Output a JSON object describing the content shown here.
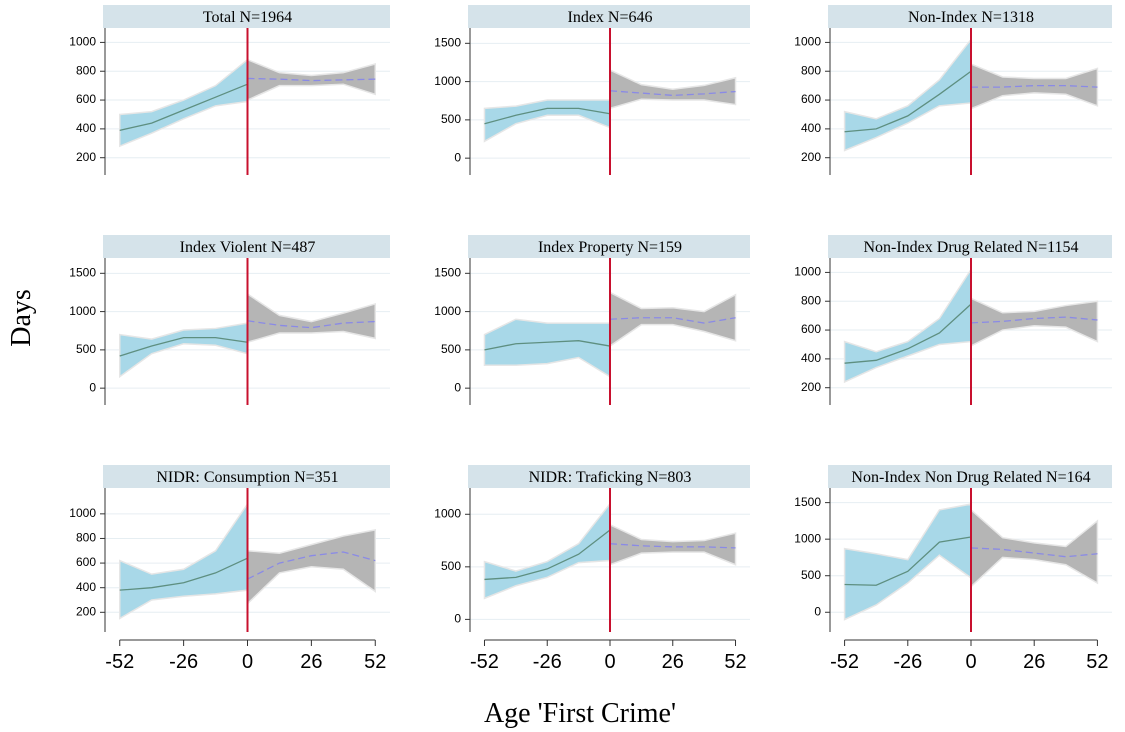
{
  "ylabel": "Days",
  "xlabel": "Age 'First Crime'",
  "chart_data": [
    {
      "type": "line",
      "title": "Total N=1964",
      "xlim": [
        -58,
        58
      ],
      "ylim": [
        80,
        1100
      ],
      "yticks": [
        200,
        400,
        600,
        800,
        1000
      ],
      "grid": true,
      "vline": {
        "value": 0,
        "color": "#c8102e"
      },
      "series": [
        {
          "x": [
            -52,
            -39,
            -26,
            -13,
            0
          ],
          "values": [
            390,
            440,
            530,
            620,
            710
          ],
          "lower": [
            280,
            370,
            470,
            560,
            590
          ],
          "upper": [
            500,
            520,
            600,
            700,
            880
          ],
          "color": "#5e8f80",
          "band_color": "#a8d8e8",
          "dash": false
        },
        {
          "x": [
            0,
            13,
            26,
            39,
            52
          ],
          "values": [
            750,
            745,
            735,
            740,
            745
          ],
          "lower": [
            600,
            700,
            700,
            710,
            640
          ],
          "upper": [
            880,
            790,
            770,
            790,
            850
          ],
          "color": "#8a8ae6",
          "band_color": "#b5b5b5",
          "dash": true
        }
      ]
    },
    {
      "type": "line",
      "title": "Index N=646",
      "xlim": [
        -58,
        58
      ],
      "ylim": [
        -220,
        1700
      ],
      "yticks": [
        0,
        500,
        1000,
        1500
      ],
      "grid": true,
      "vline": {
        "value": 0,
        "color": "#c8102e"
      },
      "series": [
        {
          "x": [
            -52,
            -39,
            -26,
            -13,
            0
          ],
          "values": [
            450,
            560,
            650,
            650,
            580
          ],
          "lower": [
            220,
            450,
            560,
            560,
            400
          ],
          "upper": [
            650,
            680,
            760,
            760,
            760
          ],
          "color": "#5e8f80",
          "band_color": "#a8d8e8",
          "dash": false
        },
        {
          "x": [
            0,
            13,
            26,
            39,
            52
          ],
          "values": [
            880,
            850,
            820,
            840,
            870
          ],
          "lower": [
            650,
            770,
            760,
            760,
            700
          ],
          "upper": [
            1150,
            960,
            900,
            950,
            1050
          ],
          "color": "#8a8ae6",
          "band_color": "#b5b5b5",
          "dash": true
        }
      ]
    },
    {
      "type": "line",
      "title": "Non-Index N=1318",
      "xlim": [
        -58,
        58
      ],
      "ylim": [
        80,
        1100
      ],
      "yticks": [
        200,
        400,
        600,
        800,
        1000
      ],
      "grid": true,
      "vline": {
        "value": 0,
        "color": "#c8102e"
      },
      "series": [
        {
          "x": [
            -52,
            -39,
            -26,
            -13,
            0
          ],
          "values": [
            380,
            400,
            490,
            640,
            800
          ],
          "lower": [
            250,
            340,
            440,
            560,
            580
          ],
          "upper": [
            520,
            470,
            560,
            740,
            1020
          ],
          "color": "#5e8f80",
          "band_color": "#a8d8e8",
          "dash": false
        },
        {
          "x": [
            0,
            13,
            26,
            39,
            52
          ],
          "values": [
            690,
            690,
            700,
            700,
            690
          ],
          "lower": [
            540,
            630,
            650,
            640,
            560
          ],
          "upper": [
            850,
            760,
            750,
            750,
            820
          ],
          "color": "#8a8ae6",
          "band_color": "#b5b5b5",
          "dash": true
        }
      ]
    },
    {
      "type": "line",
      "title": "Index Violent N=487",
      "xlim": [
        -58,
        58
      ],
      "ylim": [
        -220,
        1700
      ],
      "yticks": [
        0,
        500,
        1000,
        1500
      ],
      "grid": true,
      "vline": {
        "value": 0,
        "color": "#c8102e"
      },
      "series": [
        {
          "x": [
            -52,
            -39,
            -26,
            -13,
            0
          ],
          "values": [
            420,
            550,
            660,
            660,
            600
          ],
          "lower": [
            150,
            450,
            580,
            560,
            450
          ],
          "upper": [
            700,
            640,
            760,
            780,
            850
          ],
          "color": "#5e8f80",
          "band_color": "#a8d8e8",
          "dash": false
        },
        {
          "x": [
            0,
            13,
            26,
            39,
            52
          ],
          "values": [
            880,
            820,
            790,
            850,
            870
          ],
          "lower": [
            600,
            720,
            720,
            740,
            650
          ],
          "upper": [
            1230,
            950,
            870,
            980,
            1100
          ],
          "color": "#8a8ae6",
          "band_color": "#b5b5b5",
          "dash": true
        }
      ]
    },
    {
      "type": "line",
      "title": "Index Property N=159",
      "xlim": [
        -58,
        58
      ],
      "ylim": [
        -220,
        1700
      ],
      "yticks": [
        0,
        500,
        1000,
        1500
      ],
      "grid": true,
      "vline": {
        "value": 0,
        "color": "#c8102e"
      },
      "series": [
        {
          "x": [
            -52,
            -39,
            -26,
            -13,
            0
          ],
          "values": [
            500,
            580,
            600,
            620,
            550
          ],
          "lower": [
            300,
            300,
            320,
            400,
            150
          ],
          "upper": [
            700,
            900,
            850,
            850,
            850
          ],
          "color": "#5e8f80",
          "band_color": "#a8d8e8",
          "dash": false
        },
        {
          "x": [
            0,
            13,
            26,
            39,
            52
          ],
          "values": [
            900,
            920,
            920,
            850,
            920
          ],
          "lower": [
            550,
            830,
            830,
            740,
            620
          ],
          "upper": [
            1250,
            1040,
            1050,
            1000,
            1220
          ],
          "color": "#8a8ae6",
          "band_color": "#b5b5b5",
          "dash": true
        }
      ]
    },
    {
      "type": "line",
      "title": "Non-Index Drug Related N=1154",
      "xlim": [
        -58,
        58
      ],
      "ylim": [
        80,
        1100
      ],
      "yticks": [
        200,
        400,
        600,
        800,
        1000
      ],
      "grid": true,
      "vline": {
        "value": 0,
        "color": "#c8102e"
      },
      "series": [
        {
          "x": [
            -52,
            -39,
            -26,
            -13,
            0
          ],
          "values": [
            370,
            390,
            470,
            580,
            780
          ],
          "lower": [
            240,
            340,
            420,
            500,
            520
          ],
          "upper": [
            520,
            450,
            520,
            680,
            1020
          ],
          "color": "#5e8f80",
          "band_color": "#a8d8e8",
          "dash": false
        },
        {
          "x": [
            0,
            13,
            26,
            39,
            52
          ],
          "values": [
            650,
            660,
            680,
            690,
            670
          ],
          "lower": [
            490,
            600,
            630,
            620,
            520
          ],
          "upper": [
            820,
            720,
            730,
            770,
            800
          ],
          "color": "#8a8ae6",
          "band_color": "#b5b5b5",
          "dash": true
        }
      ]
    },
    {
      "type": "line",
      "title": "NIDR: Consumption N=351",
      "xlim": [
        -58,
        58
      ],
      "ylim": [
        40,
        1210
      ],
      "yticks": [
        200,
        400,
        600,
        800,
        1000
      ],
      "xticks": [
        -52,
        -26,
        0,
        26,
        52
      ],
      "grid": true,
      "vline": {
        "value": 0,
        "color": "#c8102e"
      },
      "series": [
        {
          "x": [
            -52,
            -39,
            -26,
            -13,
            0
          ],
          "values": [
            380,
            400,
            440,
            520,
            640
          ],
          "lower": [
            150,
            300,
            330,
            350,
            380
          ],
          "upper": [
            620,
            510,
            550,
            700,
            1080
          ],
          "color": "#5e8f80",
          "band_color": "#a8d8e8",
          "dash": false
        },
        {
          "x": [
            0,
            13,
            26,
            39,
            52
          ],
          "values": [
            470,
            600,
            660,
            690,
            620
          ],
          "lower": [
            270,
            520,
            570,
            550,
            370
          ],
          "upper": [
            700,
            680,
            750,
            820,
            870
          ],
          "color": "#8a8ae6",
          "band_color": "#b5b5b5",
          "dash": true
        }
      ]
    },
    {
      "type": "line",
      "title": "NIDR: Traficking N=803",
      "xlim": [
        -58,
        58
      ],
      "ylim": [
        -120,
        1250
      ],
      "yticks": [
        0,
        500,
        1000
      ],
      "xticks": [
        -52,
        -26,
        0,
        26,
        52
      ],
      "grid": true,
      "vline": {
        "value": 0,
        "color": "#c8102e"
      },
      "series": [
        {
          "x": [
            -52,
            -39,
            -26,
            -13,
            0
          ],
          "values": [
            380,
            400,
            480,
            620,
            850
          ],
          "lower": [
            200,
            320,
            400,
            540,
            560
          ],
          "upper": [
            550,
            460,
            550,
            720,
            1100
          ],
          "color": "#5e8f80",
          "band_color": "#a8d8e8",
          "dash": false
        },
        {
          "x": [
            0,
            13,
            26,
            39,
            52
          ],
          "values": [
            720,
            700,
            690,
            690,
            680
          ],
          "lower": [
            520,
            630,
            640,
            640,
            520
          ],
          "upper": [
            900,
            760,
            740,
            750,
            820
          ],
          "color": "#8a8ae6",
          "band_color": "#b5b5b5",
          "dash": true
        }
      ]
    },
    {
      "type": "line",
      "title": "Non-Index Non Drug Related N=164",
      "xlim": [
        -58,
        58
      ],
      "ylim": [
        -270,
        1700
      ],
      "yticks": [
        0,
        500,
        1000,
        1500
      ],
      "xticks": [
        -52,
        -26,
        0,
        26,
        52
      ],
      "grid": true,
      "vline": {
        "value": 0,
        "color": "#c8102e"
      },
      "series": [
        {
          "x": [
            -52,
            -39,
            -26,
            -13,
            0
          ],
          "values": [
            380,
            370,
            560,
            960,
            1030
          ],
          "lower": [
            -100,
            100,
            400,
            780,
            470
          ],
          "upper": [
            870,
            800,
            720,
            1400,
            1480
          ],
          "color": "#5e8f80",
          "band_color": "#a8d8e8",
          "dash": false
        },
        {
          "x": [
            0,
            13,
            26,
            39,
            52
          ],
          "values": [
            880,
            860,
            810,
            760,
            800
          ],
          "lower": [
            350,
            750,
            720,
            650,
            400
          ],
          "upper": [
            1400,
            1020,
            950,
            900,
            1250
          ],
          "color": "#8a8ae6",
          "band_color": "#b5b5b5",
          "dash": true
        }
      ]
    }
  ]
}
